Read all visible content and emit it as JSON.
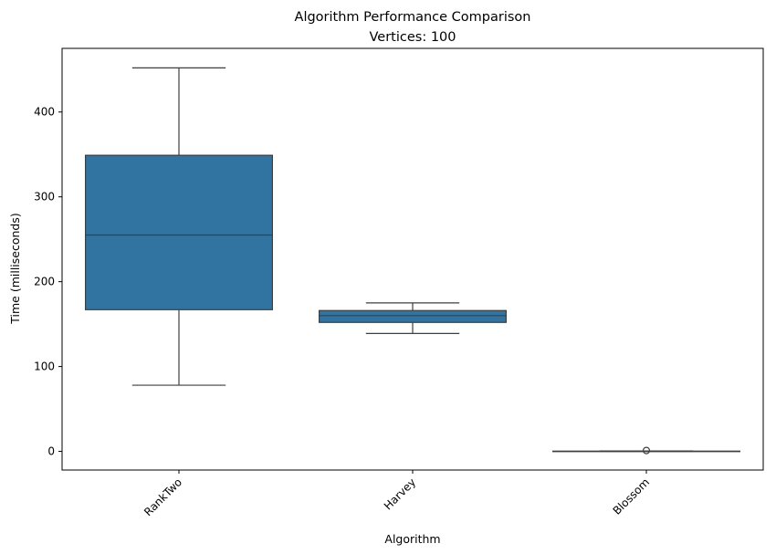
{
  "chart_data": {
    "type": "box",
    "title": "Algorithm Performance Comparison",
    "subtitle": "Vertices: 100",
    "xlabel": "Algorithm",
    "ylabel": "Time (milliseconds)",
    "ylim": [
      -22,
      475
    ],
    "yticks": [
      0,
      100,
      200,
      300,
      400
    ],
    "grid": false,
    "x_tick_rotation": 45,
    "box_color": "#3274a1",
    "line_color": "#3f3f3f",
    "categories": [
      "RankTwo",
      "Harvey",
      "Blossom"
    ],
    "boxes": [
      {
        "category": "RankTwo",
        "whisker_low": 78,
        "q1": 167,
        "median": 255,
        "q3": 349,
        "whisker_high": 452,
        "outliers": []
      },
      {
        "category": "Harvey",
        "whisker_low": 139,
        "q1": 152,
        "median": 160,
        "q3": 166,
        "whisker_high": 175,
        "outliers": []
      },
      {
        "category": "Blossom",
        "whisker_low": 0,
        "q1": 0,
        "median": 0,
        "q3": 0.3,
        "whisker_high": 0.5,
        "outliers": [
          1
        ]
      }
    ]
  }
}
